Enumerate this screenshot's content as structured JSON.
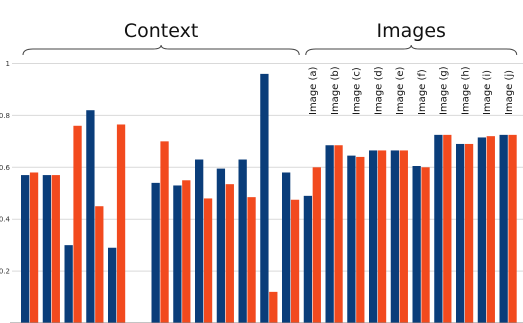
{
  "chart_data": {
    "type": "bar",
    "title": "",
    "xlabel": "",
    "ylabel": "",
    "ylim": [
      0,
      1.08
    ],
    "yticks": [
      0.2,
      0.4,
      0.6,
      0.8,
      1
    ],
    "ytick_labels": [
      "0.2",
      "0.4",
      "0.6",
      "0.8",
      "1"
    ],
    "grid": true,
    "colors": [
      "#0a3d7a",
      "#f24a1e"
    ],
    "groups": [
      {
        "label": "Context",
        "start": 0,
        "end": 12
      },
      {
        "label": "Images",
        "start": 13,
        "end": 22
      }
    ],
    "categories": [
      "",
      "",
      "",
      "",
      "",
      "",
      "",
      "",
      "",
      "",
      "",
      "",
      "",
      "Image (a)",
      "Image (b)",
      "Image (c)",
      "Image (d)",
      "Image (e)",
      "Image (f)",
      "Image (g)",
      "Image (h)",
      "Image (i)",
      "Image (j)"
    ],
    "series": [
      {
        "name": "",
        "values": [
          0.57,
          0.57,
          0.3,
          0.82,
          0.29,
          null,
          0.54,
          0.53,
          0.63,
          0.595,
          0.63,
          0.96,
          0.58,
          0.49,
          0.685,
          0.645,
          0.665,
          0.665,
          0.605,
          0.725,
          0.69,
          0.715,
          0.725
        ]
      },
      {
        "name": "",
        "values": [
          0.58,
          0.57,
          0.76,
          0.45,
          0.765,
          null,
          0.7,
          0.55,
          0.48,
          0.535,
          0.485,
          0.12,
          0.475,
          0.6,
          0.685,
          0.64,
          0.665,
          0.665,
          0.6,
          0.725,
          0.69,
          0.72,
          0.725
        ]
      }
    ]
  }
}
